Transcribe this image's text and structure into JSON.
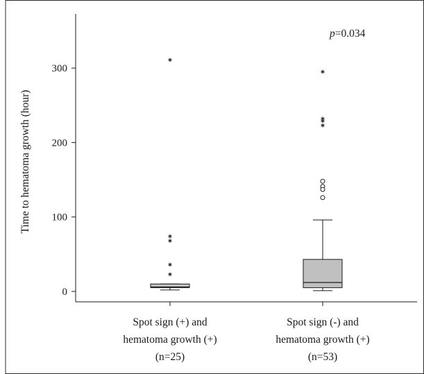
{
  "chart_data": {
    "type": "boxplot",
    "title": "",
    "xlabel": "",
    "ylabel": "Time to hematoma growth (hour)",
    "ylim": [
      -12,
      370
    ],
    "yticks": [
      0,
      100,
      200,
      300
    ],
    "annotation": {
      "p_symbol": "p",
      "p_value": "=0.034"
    },
    "categories": [
      {
        "lines": [
          "Spot sign (+) and",
          "hematoma growth (+)",
          "(n=25)"
        ]
      },
      {
        "lines": [
          "Spot sign (-) and",
          "hematoma growth (+)",
          "(n=53)"
        ]
      }
    ],
    "boxes": [
      {
        "whisker_low": 2,
        "q1": 5,
        "median": 6,
        "q3": 10,
        "whisker_high": 10,
        "outliers": [],
        "extremes": [
          311,
          74,
          68,
          36,
          23
        ]
      },
      {
        "whisker_low": 1,
        "q1": 5,
        "median": 12,
        "q3": 43,
        "whisker_high": 96,
        "outliers": [
          148,
          141,
          137,
          126
        ],
        "extremes": [
          295,
          232,
          229,
          223
        ]
      }
    ],
    "box_fill": "#c0c0c0",
    "line_color": "#1a1a1a"
  }
}
